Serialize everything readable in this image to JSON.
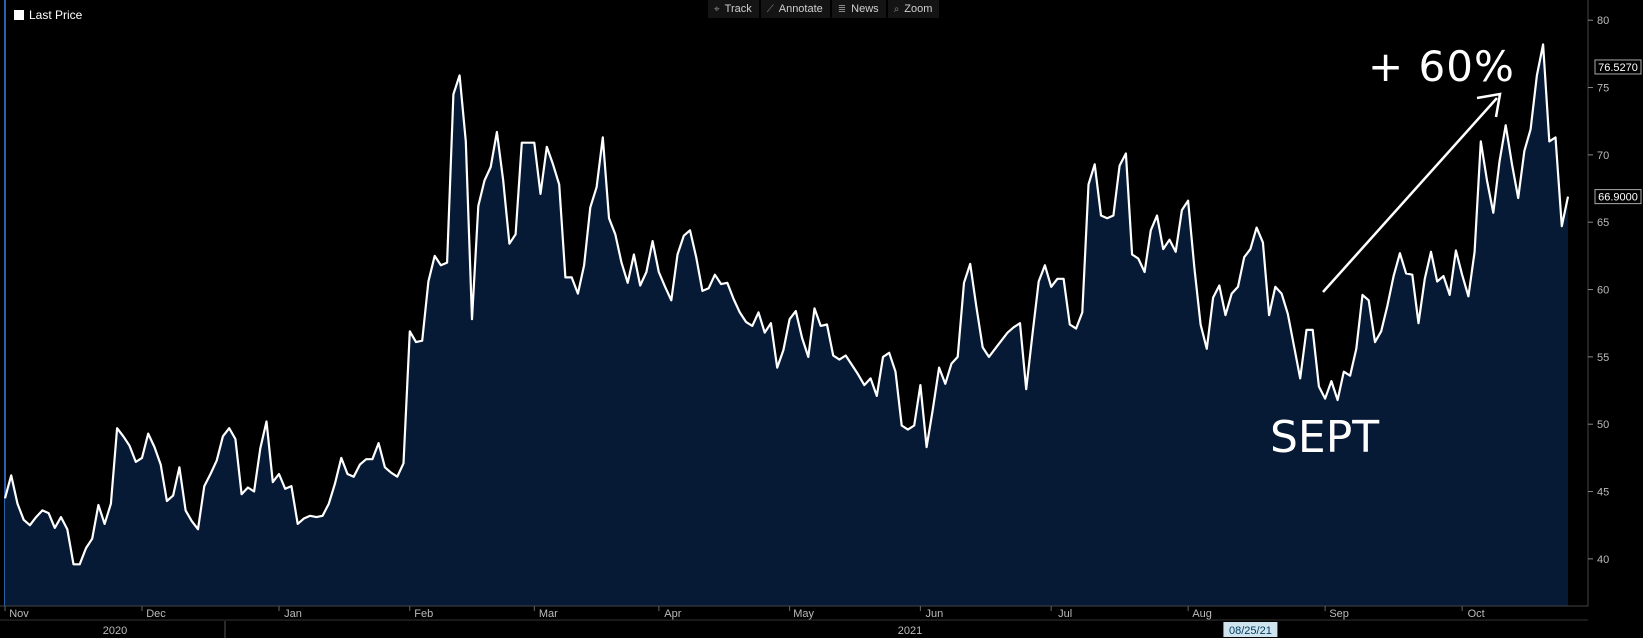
{
  "legend": {
    "label": "Last Price",
    "color": "#ffffff"
  },
  "toolbar": [
    {
      "name": "track",
      "label": "Track",
      "icon": "crosshair-icon",
      "glyph": "⌖"
    },
    {
      "name": "annotate",
      "label": "Annotate",
      "icon": "pencil-icon",
      "glyph": "⟋"
    },
    {
      "name": "news",
      "label": "News",
      "icon": "news-icon",
      "glyph": "≣"
    },
    {
      "name": "zoom",
      "label": "Zoom",
      "icon": "magnifier-icon",
      "glyph": "⌕"
    }
  ],
  "annotations": {
    "percent": "+ 60%",
    "month": "SEPT"
  },
  "colors": {
    "background": "#000000",
    "line": "#ffffff",
    "fill": "#061a35",
    "axis": "#444444",
    "tag_bg": "#cfe3ee",
    "tag_text": "#003b5c"
  },
  "chart_data": {
    "type": "area",
    "ylim": [
      36.5,
      81.5
    ],
    "y_ticks": [
      40,
      45,
      50,
      55,
      60,
      65,
      70,
      75,
      80
    ],
    "y_tick_labels": [
      "40",
      "45",
      "50",
      "55",
      "60",
      "65",
      "70",
      "75",
      "80"
    ],
    "month_labels": [
      "Nov",
      "Dec",
      "Jan",
      "Feb",
      "Mar",
      "Apr",
      "May",
      "Jun",
      "Jul",
      "Aug",
      "Sep",
      "Oct"
    ],
    "year_labels": [
      "2020",
      "2021"
    ],
    "price_tags": [
      "76.5270",
      "66.9000"
    ],
    "cursor_date": "08/25/21",
    "series": [
      {
        "values": [
          44.5,
          46.2,
          44.1,
          42.9,
          42.5,
          43.1,
          43.6,
          43.4,
          42.3,
          43.1,
          42.2,
          39.6,
          39.6,
          40.8,
          41.5,
          44,
          42.6,
          44.1,
          49.7,
          49.1,
          48.4,
          47.2,
          47.5,
          49.3,
          48.3,
          47,
          44.3,
          44.7,
          46.8,
          43.6,
          42.8,
          42.2,
          45.4,
          46.3,
          47.3,
          49.1,
          49.7,
          48.9,
          44.8,
          45.3,
          45,
          48.2,
          50.2,
          45.7,
          46.3,
          45.2,
          45.4,
          42.6,
          43,
          43.2,
          43.1,
          43.2,
          44.1,
          45.6,
          47.5,
          46.3,
          46.1,
          47,
          47.4,
          47.4,
          48.6,
          46.8,
          46.4,
          46.1,
          47.1,
          56.9,
          56.1,
          56.2,
          60.6,
          62.5,
          61.8,
          62,
          74.5,
          75.9,
          71,
          57.8,
          66.2,
          68.1,
          69.1,
          71.7,
          68.1,
          63.4,
          64.1,
          70.9,
          70.9,
          70.9,
          67.1,
          70.6,
          69.3,
          67.8,
          60.9,
          60.9,
          59.7,
          61.8,
          66.1,
          67.6,
          71.3,
          65.3,
          64.1,
          62,
          60.5,
          62.6,
          60.3,
          61.3,
          63.6,
          61.3,
          60.2,
          59.2,
          62.6,
          64,
          64.4,
          62.4,
          59.9,
          60.1,
          61.1,
          60.4,
          60.5,
          59.3,
          58.3,
          57.6,
          57.3,
          58.3,
          56.8,
          57.5,
          54.2,
          55.5,
          57.8,
          58.4,
          56.4,
          55,
          58.6,
          57.3,
          57.4,
          55.1,
          54.8,
          55.1,
          54.4,
          53.7,
          52.9,
          53.4,
          52.1,
          55,
          55.3,
          53.9,
          49.9,
          49.6,
          49.9,
          52.9,
          48.3,
          51.1,
          54.2,
          53,
          54.5,
          55,
          60.5,
          61.9,
          58.7,
          55.7,
          55,
          55.6,
          56.2,
          56.8,
          57.2,
          57.5,
          52.6,
          56.7,
          60.6,
          61.8,
          60.2,
          60.8,
          60.8,
          57.4,
          57.1,
          58.3,
          67.8,
          69.3,
          65.5,
          65.3,
          65.5,
          69.2,
          70.1,
          62.6,
          62.3,
          61.3,
          64.4,
          65.5,
          63,
          63.7,
          62.8,
          65.9,
          66.6,
          61.6,
          57.4,
          55.6,
          59.4,
          60.3,
          58.1,
          59.7,
          60.2,
          62.4,
          63,
          64.6,
          63.5,
          58.1,
          60.2,
          59.7,
          58.2,
          55.8,
          53.4,
          57,
          57,
          52.8,
          51.9,
          53.2,
          51.8,
          53.9,
          53.6,
          55.6,
          59.6,
          59.2,
          56.1,
          56.9,
          58.8,
          61,
          62.7,
          61.2,
          61.1,
          57.5,
          60.8,
          62.8,
          60.6,
          61,
          59.6,
          62.9,
          61.1,
          59.5,
          62.8,
          71,
          68.1,
          65.7,
          69.5,
          72.2,
          69.3,
          66.8,
          70.3,
          71.9,
          75.9,
          78.2,
          71,
          71.3,
          64.7,
          66.9
        ]
      }
    ]
  }
}
